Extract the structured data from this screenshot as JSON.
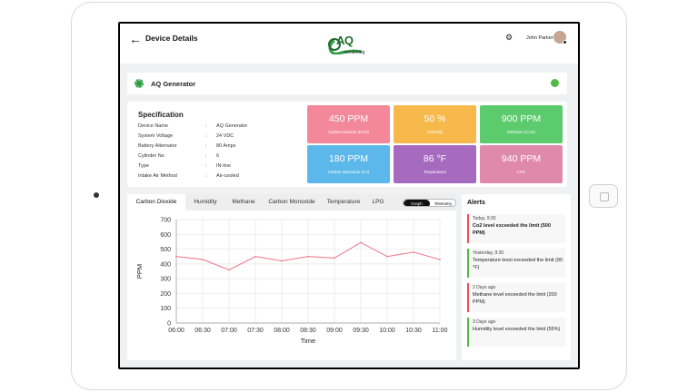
{
  "header": {
    "title": "Device Details",
    "logo_text": "AQ",
    "logo_sub": "monitoring",
    "user_name": "John Parker"
  },
  "device": {
    "name": "AQ Generator",
    "status_color": "#54b848"
  },
  "specification": {
    "title": "Specification",
    "rows": [
      {
        "label": "Device Name",
        "value": "AQ Generator"
      },
      {
        "label": "System Voltage",
        "value": "24 VDC"
      },
      {
        "label": "Battery Alternator",
        "value": "80 Amps"
      },
      {
        "label": "Cylinder No",
        "value": "6"
      },
      {
        "label": "Type",
        "value": "IN-line"
      },
      {
        "label": "Intake Air Method",
        "value": "Air-cooled"
      }
    ]
  },
  "metrics": [
    {
      "value": "450 PPM",
      "label": "Carbon Dioxide (CO2)",
      "color": "#f4889b"
    },
    {
      "value": "50 %",
      "label": "Humidity",
      "color": "#f7b94c"
    },
    {
      "value": "900 PPM",
      "label": "Methane (CH4)",
      "color": "#5ccb6e"
    },
    {
      "value": "180 PPM",
      "label": "Carbon Monoxide (Co)",
      "color": "#5cb8ea"
    },
    {
      "value": "86 °F",
      "label": "Temperature",
      "color": "#a66bbf"
    },
    {
      "value": "940 PPM",
      "label": "LPG",
      "color": "#e08aa9"
    }
  ],
  "tabs": [
    "Carbon Dioxide",
    "Humidity",
    "Methane",
    "Carbon Monoxide",
    "Temperature",
    "LPG"
  ],
  "view_toggle": {
    "graph": "Graph",
    "telemetry": "Telemetry"
  },
  "chart_data": {
    "type": "line",
    "categories": [
      "06:00",
      "06:30",
      "07:00",
      "07:30",
      "08:00",
      "08:30",
      "09:00",
      "09:30",
      "10:00",
      "10:30",
      "11:00"
    ],
    "series": [
      {
        "values": [
          450,
          430,
          360,
          450,
          420,
          450,
          440,
          545,
          450,
          480,
          430
        ],
        "color": "#ee7f95"
      }
    ],
    "xlabel": "Time",
    "ylabel": "PPM",
    "ylim": [
      0,
      700
    ],
    "yticks": [
      0,
      100,
      200,
      300,
      400,
      500,
      600,
      700
    ],
    "grid": true
  },
  "alerts": {
    "title": "Alerts",
    "items": [
      {
        "time": "Today, 9:30",
        "message": "Co2 level exceeded the limit (500 PPM)",
        "color": "#e8505b"
      },
      {
        "time": "Yesterday, 9:30",
        "message": "Temperature level exceeded the limit (90 °F)",
        "color": "#54b848"
      },
      {
        "time": "2 Days ago",
        "message": "Methane level exceeded the limit (200 PPM)",
        "color": "#e8505b"
      },
      {
        "time": "3 Days ago",
        "message": "Humidity level exceeded the limit (55%)",
        "color": "#54b848"
      }
    ]
  }
}
